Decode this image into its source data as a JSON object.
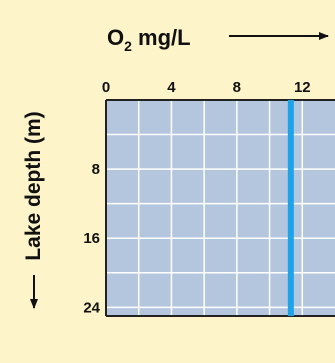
{
  "chart_data": {
    "type": "line",
    "x_title_main": "O",
    "x_title_sub": "2",
    "x_title_rest": " mg/L",
    "y_title": "Lake depth (m)",
    "x_axis": {
      "min": 0,
      "max": 14,
      "position": "top",
      "ticks": [
        0,
        4,
        8,
        12
      ],
      "tick_labels": [
        "0",
        "4",
        "8",
        "12"
      ]
    },
    "y_axis": {
      "min": 0,
      "max": 25,
      "inverted": true,
      "ticks": [
        8,
        16,
        24
      ],
      "tick_labels": [
        "8",
        "16",
        "24"
      ]
    },
    "grid": true,
    "series": [
      {
        "x": [
          11.3,
          11.3,
          11.3,
          11.3
        ],
        "y": [
          0,
          8,
          16,
          25
        ]
      }
    ],
    "colors": {
      "background": "#fdf4c9",
      "plot_fill": "#b4c6dd",
      "grid": "#ffffff",
      "series": "#1ea3e8",
      "text": "#111111",
      "frame": "#222222"
    }
  }
}
